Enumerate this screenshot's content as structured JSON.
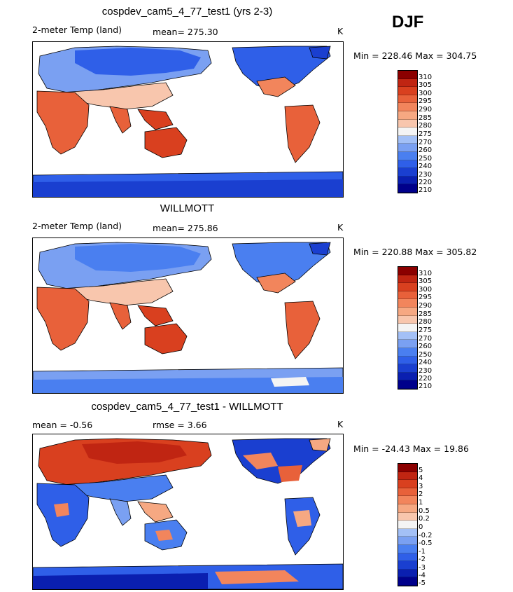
{
  "season": "DJF",
  "colors": {
    "ramp": [
      "#00008b",
      "#0a1fb0",
      "#1a3fd0",
      "#2f5fe8",
      "#4a7ff0",
      "#7aa0f2",
      "#a3c0f6",
      "#f4f4f4",
      "#f8c6ad",
      "#f6a882",
      "#f2855c",
      "#e8613a",
      "#d9401f",
      "#c02512",
      "#8b0000"
    ],
    "land_cold": "#2f5fe8",
    "land_cool": "#7aa0f2",
    "land_warm": "#f2855c",
    "land_hot": "#e8613a",
    "antarctica": "#2f5fe8"
  },
  "panels": [
    {
      "title": "cospdev_cam5_4_77_test1 (yrs 2-3)",
      "left_label": "2-meter Temp (land)",
      "mean_text": "mean= 275.30",
      "rmse_text": "",
      "units": "K",
      "minmax": "Min = 228.46 Max = 304.75",
      "ticks": [
        "310",
        "305",
        "300",
        "295",
        "290",
        "285",
        "280",
        "275",
        "270",
        "260",
        "250",
        "240",
        "230",
        "220",
        "210"
      ]
    },
    {
      "title": "WILLMOTT",
      "left_label": "2-meter Temp (land)",
      "mean_text": "mean= 275.86",
      "rmse_text": "",
      "units": "K",
      "minmax": "Min = 220.88 Max = 305.82",
      "ticks": [
        "310",
        "305",
        "300",
        "295",
        "290",
        "285",
        "280",
        "275",
        "270",
        "260",
        "250",
        "240",
        "230",
        "220",
        "210"
      ]
    },
    {
      "title": "cospdev_cam5_4_77_test1 - WILLMOTT",
      "left_label": "",
      "mean_text": "mean =   -0.56",
      "rmse_text": "rmse =    3.66",
      "units": "K",
      "minmax": "Min = -24.43 Max =  19.86",
      "ticks": [
        "5",
        "4",
        "3",
        "2",
        "1",
        "0.5",
        "0.2",
        "0",
        "-0.2",
        "-0.5",
        "-1",
        "-2",
        "-3",
        "-4",
        "-5"
      ]
    }
  ]
}
